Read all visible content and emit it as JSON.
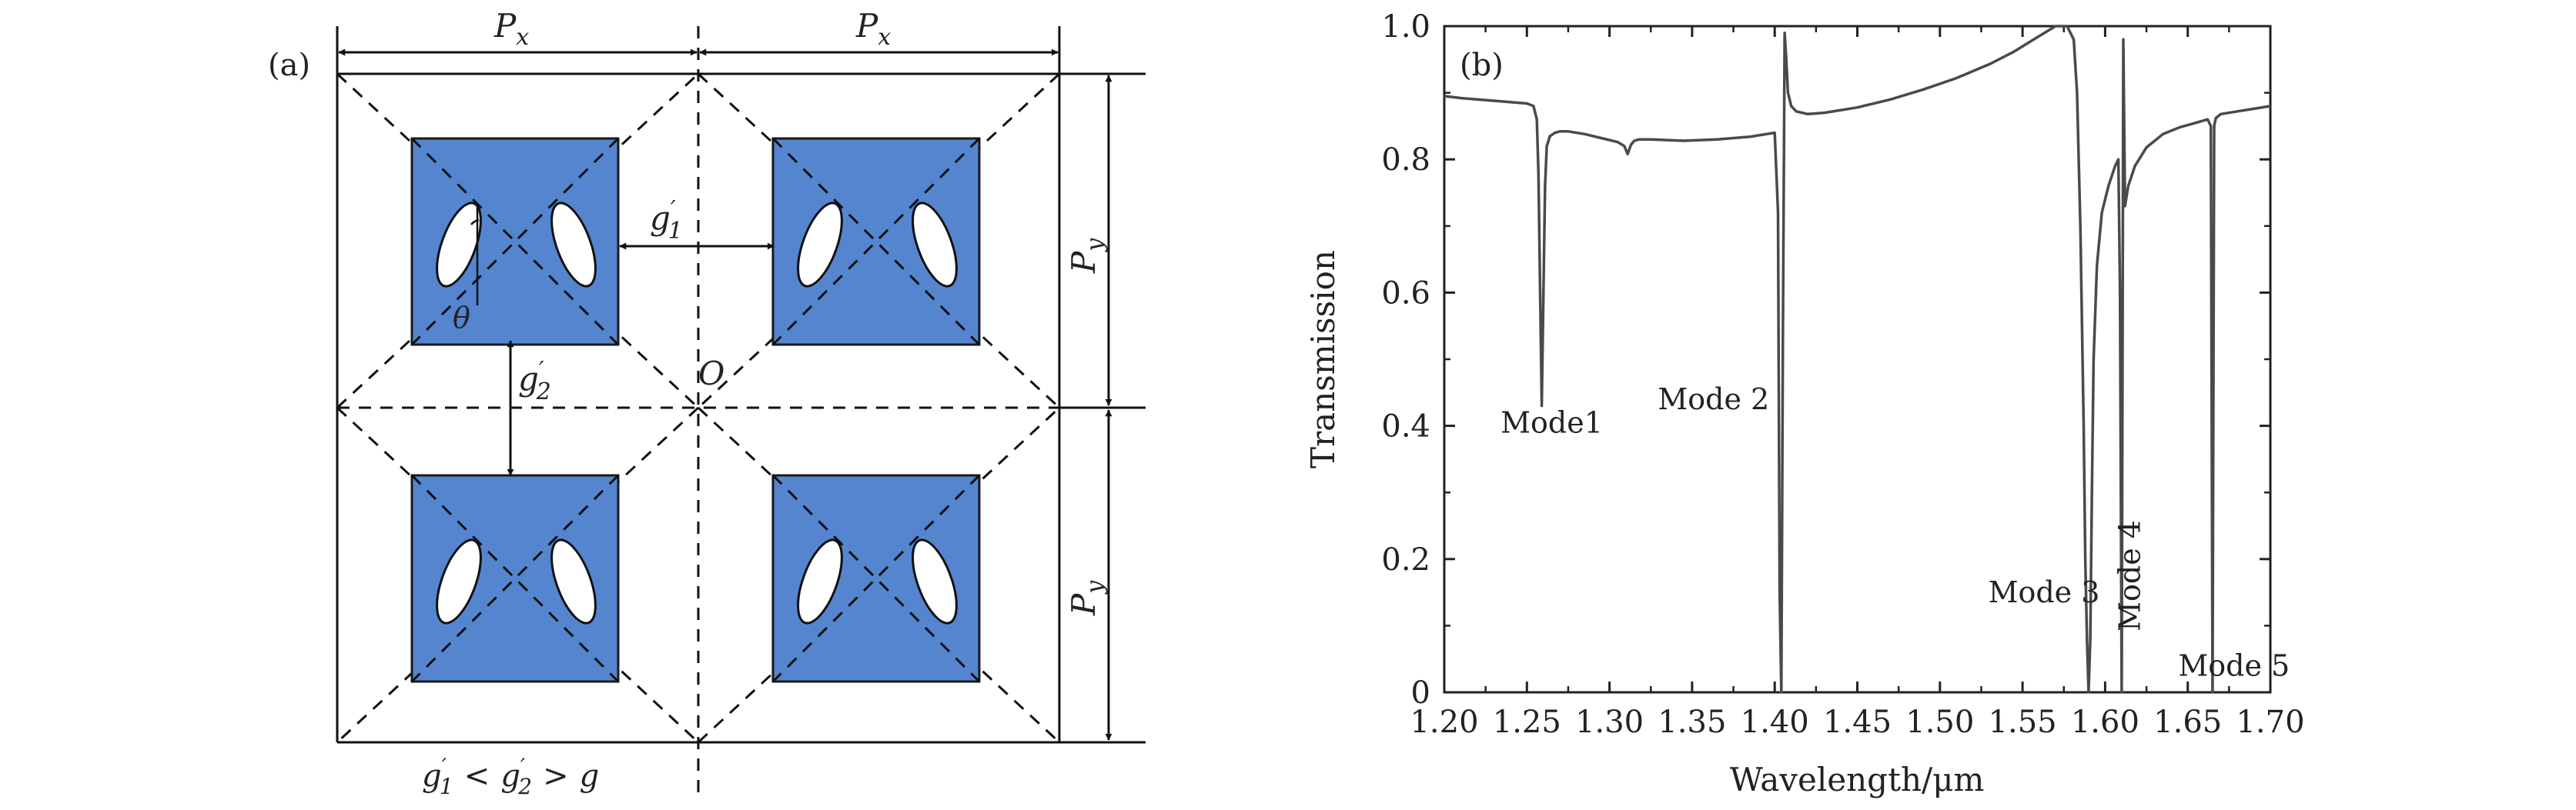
{
  "panel_a": {
    "label": "(a)",
    "px_label": "P",
    "px_sub": "x",
    "py_label": "P",
    "py_sub": "y",
    "g1_label": "g",
    "g1_sub": "1",
    "g2_label": "g",
    "g2_sub": "2",
    "origin_label": "O",
    "theta_label": "θ",
    "relation_g1": "g",
    "relation_g1_sub": "1",
    "relation_lt": "<",
    "relation_g2": "g",
    "relation_g2_sub": "2",
    "relation_gt": ">",
    "relation_g": "g",
    "colors": {
      "square_fill": "#5585CF",
      "square_stroke": "#1a1a1a",
      "ellipse_fill": "#ffffff"
    }
  },
  "chart_data": {
    "type": "line",
    "panel_label": "(b)",
    "xlabel": "Wavelength/μm",
    "ylabel": "Transmission",
    "xlim": [
      1.2,
      1.7
    ],
    "ylim": [
      0,
      1.0
    ],
    "xticks": [
      1.2,
      1.25,
      1.3,
      1.35,
      1.4,
      1.45,
      1.5,
      1.55,
      1.6,
      1.65,
      1.7
    ],
    "xtick_labels": [
      "1.20",
      "1.25",
      "1.30",
      "1.35",
      "1.40",
      "1.45",
      "1.50",
      "1.55",
      "1.60",
      "1.65",
      "1.70"
    ],
    "yticks": [
      0,
      0.2,
      0.4,
      0.6,
      0.8,
      1.0
    ],
    "ytick_labels": [
      "0",
      "0.2",
      "0.4",
      "0.6",
      "0.8",
      "1.0"
    ],
    "grid": false,
    "line_color": "#4a4a4a",
    "series": [
      {
        "x": [
          1.2,
          1.21,
          1.22,
          1.23,
          1.24,
          1.25,
          1.254,
          1.256,
          1.257,
          1.258,
          1.259,
          1.26,
          1.261,
          1.262,
          1.264,
          1.267,
          1.27,
          1.275,
          1.285,
          1.295,
          1.305,
          1.309,
          1.311,
          1.313,
          1.315,
          1.318,
          1.325,
          1.345,
          1.365,
          1.385,
          1.395,
          1.4,
          1.402,
          1.403,
          1.404,
          1.405,
          1.406,
          1.407,
          1.408,
          1.41,
          1.413,
          1.42,
          1.43,
          1.45,
          1.47,
          1.49,
          1.51,
          1.53,
          1.545,
          1.56,
          1.57,
          1.577,
          1.581,
          1.583,
          1.585,
          1.587,
          1.588,
          1.589,
          1.59,
          1.591,
          1.592,
          1.593,
          1.595,
          1.598,
          1.602,
          1.606,
          1.608,
          1.609,
          1.61,
          1.611,
          1.612,
          1.614,
          1.618,
          1.625,
          1.635,
          1.645,
          1.655,
          1.662,
          1.664,
          1.665,
          1.666,
          1.667,
          1.67,
          1.68,
          1.69,
          1.7
        ],
        "y": [
          0.895,
          0.892,
          0.89,
          0.888,
          0.886,
          0.884,
          0.88,
          0.86,
          0.78,
          0.6,
          0.43,
          0.6,
          0.76,
          0.82,
          0.835,
          0.84,
          0.842,
          0.842,
          0.838,
          0.832,
          0.826,
          0.82,
          0.808,
          0.822,
          0.828,
          0.83,
          0.83,
          0.828,
          0.83,
          0.834,
          0.838,
          0.84,
          0.72,
          0.15,
          0.0,
          0.55,
          0.99,
          0.95,
          0.9,
          0.88,
          0.872,
          0.868,
          0.87,
          0.878,
          0.89,
          0.905,
          0.922,
          0.943,
          0.962,
          0.985,
          1.0,
          1.0,
          0.98,
          0.9,
          0.7,
          0.4,
          0.2,
          0.08,
          0.0,
          0.08,
          0.3,
          0.5,
          0.64,
          0.72,
          0.76,
          0.79,
          0.8,
          0.6,
          0.0,
          0.98,
          0.73,
          0.76,
          0.79,
          0.818,
          0.838,
          0.848,
          0.855,
          0.86,
          0.85,
          0.0,
          0.85,
          0.862,
          0.868,
          0.872,
          0.876,
          0.88
        ]
      }
    ],
    "annotations": [
      {
        "text": "Mode1",
        "x": 1.265,
        "y": 0.39,
        "rotate": 0
      },
      {
        "text": "Mode 2",
        "x": 1.363,
        "y": 0.425,
        "rotate": 0
      },
      {
        "text": "Mode 3",
        "x": 1.563,
        "y": 0.135,
        "rotate": 0
      },
      {
        "text": "Mode 4",
        "x": 1.621,
        "y": 0.175,
        "rotate": -90
      },
      {
        "text": "Mode 5",
        "x": 1.678,
        "y": 0.025,
        "rotate": 0
      }
    ]
  }
}
